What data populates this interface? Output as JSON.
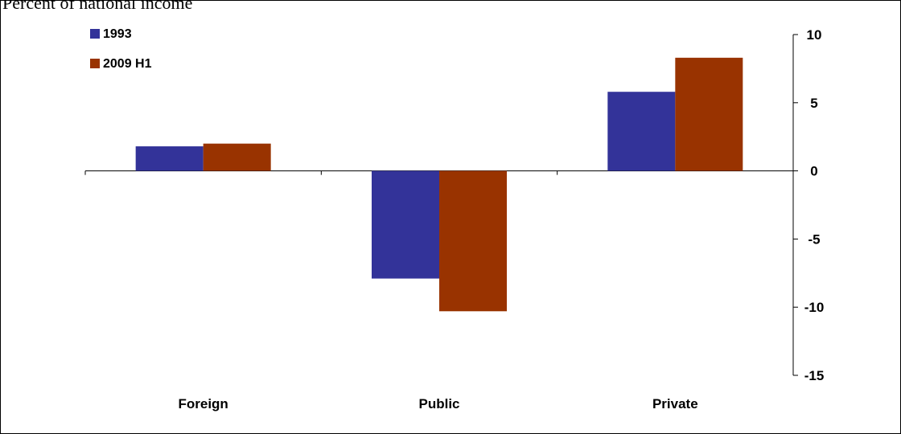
{
  "title": "Percent of national income",
  "chart_data": {
    "type": "bar",
    "categories": [
      "Foreign",
      "Public",
      "Private"
    ],
    "series": [
      {
        "name": "1993",
        "values": [
          1.8,
          -7.9,
          5.8
        ],
        "color": "#333399"
      },
      {
        "name": "2009 H1",
        "values": [
          2.0,
          -10.3,
          8.3
        ],
        "color": "#993300"
      }
    ],
    "ylim": [
      -15,
      10
    ],
    "yticks": [
      10,
      5,
      0,
      -5,
      -10,
      -15
    ],
    "y_axis_side": "right",
    "grid": false,
    "legend_position": "top-left"
  }
}
